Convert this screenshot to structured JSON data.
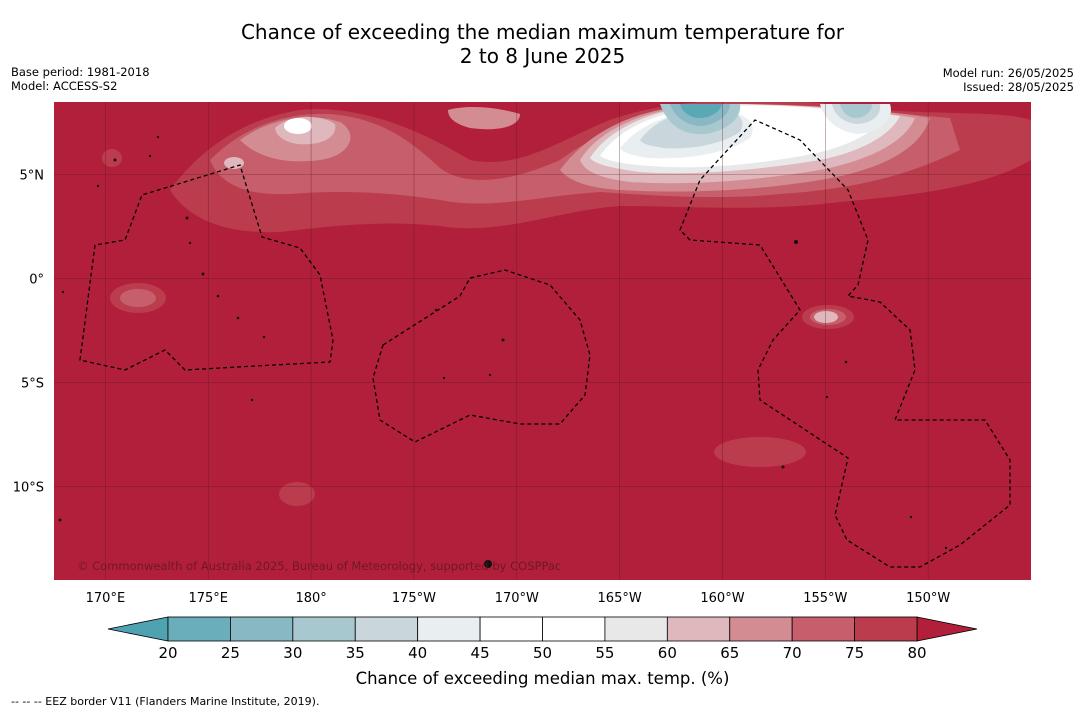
{
  "title": {
    "line1": "Chance of exceeding the median maximum temperature for",
    "line2": "2 to 8 June 2025"
  },
  "meta_left": {
    "base_period": "Base period: 1981-2018",
    "model": "Model: ACCESS-S2"
  },
  "meta_right": {
    "model_run": "Model run: 26/05/2025",
    "issued": "Issued: 28/05/2025"
  },
  "map": {
    "extent_lon_deg_east": [
      167.5,
      215.0
    ],
    "extent_lat": [
      -14.5,
      8.5
    ],
    "lat_ticks": [
      {
        "value": 5,
        "label": "5°N"
      },
      {
        "value": 0,
        "label": "0°"
      },
      {
        "value": -5,
        "label": "5°S"
      },
      {
        "value": -10,
        "label": "10°S"
      }
    ],
    "lon_ticks": [
      {
        "value": 170,
        "label": "170°E"
      },
      {
        "value": 175,
        "label": "175°E"
      },
      {
        "value": 180,
        "label": "180°"
      },
      {
        "value": 185,
        "label": "175°W"
      },
      {
        "value": 190,
        "label": "170°W"
      },
      {
        "value": 195,
        "label": "165°W"
      },
      {
        "value": 200,
        "label": "160°W"
      },
      {
        "value": 205,
        "label": "155°W"
      },
      {
        "value": 210,
        "label": "150°W"
      }
    ],
    "copyright": "© Commonwealth of Australia 2025, Bureau of Meteorology, supported by COSPPac",
    "background_color": "#b21f3b"
  },
  "colorbar": {
    "ticks": [
      "20",
      "25",
      "30",
      "35",
      "40",
      "45",
      "50",
      "55",
      "60",
      "65",
      "70",
      "75",
      "80"
    ],
    "colors": [
      "#6aadbb",
      "#88b8c4",
      "#a8c8cf",
      "#c9d7dc",
      "#e9eef0",
      "#ffffff",
      "#ffffff",
      "#e9e8e8",
      "#dfb8bd",
      "#d48c93",
      "#c75e6b",
      "#bb3c4c"
    ],
    "under_color": "#4fa3b1",
    "over_color": "#b21f3b",
    "label": "Chance of exceeding median max. temp. (%)"
  },
  "footnote": "--  --  -- EEZ border V11 (Flanders Marine Institute, 2019)."
}
